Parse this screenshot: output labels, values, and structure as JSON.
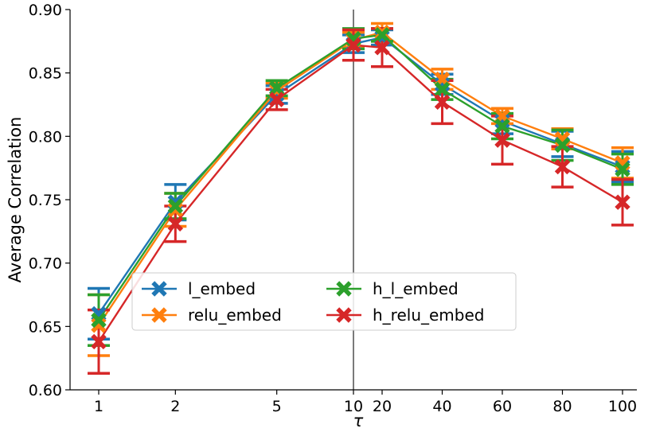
{
  "chart_data": {
    "type": "line",
    "xlabel": "τ",
    "ylabel": "Average Correlation",
    "ylim": [
      0.6,
      0.9
    ],
    "yticks": [
      "0.60",
      "0.65",
      "0.70",
      "0.75",
      "0.80",
      "0.85",
      "0.90"
    ],
    "x": [
      1,
      2,
      5,
      10,
      20,
      40,
      60,
      80,
      100
    ],
    "xtick_labels": [
      "1",
      "2",
      "5",
      "10",
      "20",
      "40",
      "60",
      "80",
      "100"
    ],
    "x_axis_note": "left segment log-scaled (1–10), right segment linear (20–100)",
    "vertical_line_at": 10,
    "grid": false,
    "legend_position": "lower center",
    "series": [
      {
        "name": "l_embed",
        "color": "#1f77b4",
        "values": [
          0.66,
          0.748,
          0.833,
          0.873,
          0.878,
          0.841,
          0.812,
          0.794,
          0.776
        ],
        "errors": [
          0.02,
          0.014,
          0.007,
          0.007,
          0.006,
          0.008,
          0.01,
          0.01,
          0.012
        ]
      },
      {
        "name": "relu_embed",
        "color": "#ff7f0e",
        "values": [
          0.651,
          0.742,
          0.836,
          0.876,
          0.882,
          0.845,
          0.816,
          0.798,
          0.779
        ],
        "errors": [
          0.024,
          0.013,
          0.006,
          0.006,
          0.007,
          0.008,
          0.006,
          0.008,
          0.012
        ]
      },
      {
        "name": "h_l_embed",
        "color": "#2ca02c",
        "values": [
          0.655,
          0.745,
          0.838,
          0.877,
          0.88,
          0.837,
          0.808,
          0.793,
          0.774
        ],
        "errors": [
          0.02,
          0.01,
          0.006,
          0.008,
          0.005,
          0.008,
          0.01,
          0.012,
          0.012
        ]
      },
      {
        "name": "h_relu_embed",
        "color": "#d62728",
        "values": [
          0.638,
          0.731,
          0.829,
          0.872,
          0.87,
          0.827,
          0.797,
          0.776,
          0.748
        ],
        "errors": [
          0.025,
          0.014,
          0.008,
          0.012,
          0.015,
          0.017,
          0.019,
          0.016,
          0.018
        ]
      }
    ]
  }
}
